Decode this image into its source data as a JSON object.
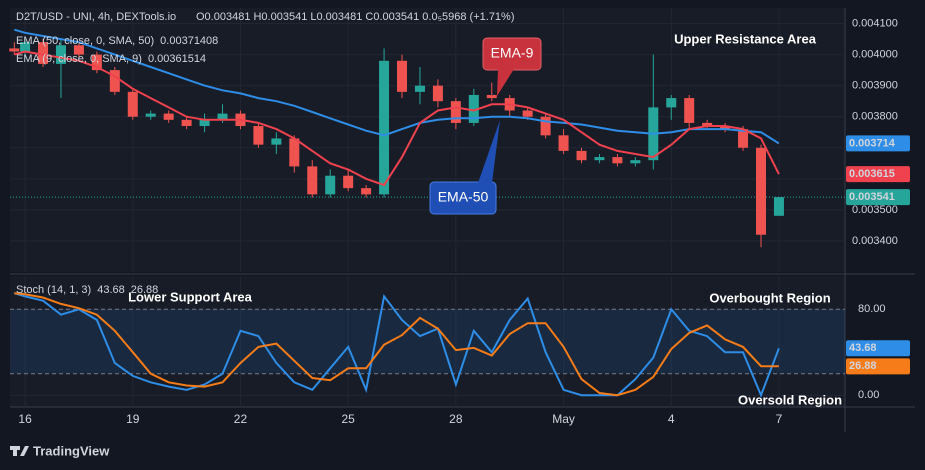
{
  "chart_data": [
    {
      "type": "candlestick",
      "title": "D2T/USD - UNI, 4h, DEXTools.io",
      "ohlc_text": "O0.003481  H0.003541  L0.003481  C0.003541  0.0₅5968 (+1.71%)",
      "up_color": "#26a69a",
      "down_color": "#ef5350",
      "x": [
        -0.3,
        0,
        0.5,
        1,
        1.5,
        2,
        2.5,
        3,
        3.5,
        4,
        4.5,
        5,
        5.5,
        6,
        6.5,
        7,
        7.5,
        8,
        8.5,
        9,
        9.5,
        10,
        10.5,
        11,
        11.5,
        12,
        12.5,
        13,
        13.5,
        14,
        14.5,
        15,
        15.5,
        16,
        16.5,
        17,
        17.5,
        18,
        18.5,
        19,
        19.5,
        20,
        20.5,
        21
      ],
      "open": [
        0.00402,
        0.00401,
        0.00404,
        0.00397,
        0.00403,
        0.004,
        0.00395,
        0.00388,
        0.0038,
        0.00381,
        0.00379,
        0.00377,
        0.00379,
        0.00381,
        0.00377,
        0.00371,
        0.00373,
        0.00364,
        0.00355,
        0.00361,
        0.00357,
        0.00355,
        0.00398,
        0.00388,
        0.0039,
        0.00385,
        0.00378,
        0.00387,
        0.00386,
        0.00382,
        0.0038,
        0.00374,
        0.00369,
        0.00366,
        0.00367,
        0.00365,
        0.00366,
        0.00383,
        0.00386,
        0.00378,
        0.00377,
        0.00376,
        0.0037,
        0.003481
      ],
      "high": [
        0.00404,
        0.00405,
        0.00405,
        0.00405,
        0.00404,
        0.00401,
        0.00396,
        0.00389,
        0.00382,
        0.00382,
        0.0038,
        0.00381,
        0.00384,
        0.00382,
        0.00378,
        0.00375,
        0.00374,
        0.00366,
        0.00363,
        0.00363,
        0.00358,
        0.00402,
        0.004,
        0.00396,
        0.00392,
        0.00386,
        0.00389,
        0.00391,
        0.00387,
        0.00383,
        0.00381,
        0.00376,
        0.0037,
        0.00368,
        0.00368,
        0.00367,
        0.004,
        0.00387,
        0.00387,
        0.00379,
        0.00378,
        0.00377,
        0.00371,
        0.003541
      ],
      "low": [
        0.004,
        0.00399,
        0.00396,
        0.00386,
        0.00399,
        0.00394,
        0.00387,
        0.00379,
        0.00379,
        0.00378,
        0.00376,
        0.00375,
        0.00378,
        0.00376,
        0.0037,
        0.00368,
        0.00362,
        0.00354,
        0.00354,
        0.00356,
        0.00354,
        0.00354,
        0.00386,
        0.00384,
        0.00383,
        0.00376,
        0.00377,
        0.00385,
        0.0038,
        0.00379,
        0.00373,
        0.00368,
        0.00365,
        0.00365,
        0.00364,
        0.00364,
        0.00363,
        0.00379,
        0.00376,
        0.00376,
        0.00375,
        0.00369,
        0.00338,
        0.003481
      ],
      "close": [
        0.00401,
        0.00404,
        0.00397,
        0.00403,
        0.004,
        0.00395,
        0.00388,
        0.0038,
        0.00381,
        0.00379,
        0.00377,
        0.00379,
        0.00381,
        0.00377,
        0.00371,
        0.00373,
        0.00364,
        0.00355,
        0.00361,
        0.00357,
        0.00355,
        0.00398,
        0.00388,
        0.0039,
        0.00385,
        0.00378,
        0.00387,
        0.00386,
        0.00382,
        0.0038,
        0.00374,
        0.00369,
        0.00366,
        0.00367,
        0.00365,
        0.00366,
        0.00383,
        0.00386,
        0.00378,
        0.00377,
        0.00376,
        0.0037,
        0.00342,
        0.003541
      ],
      "series": [
        {
          "name": "EMA (50, close, 0, SMA, 50)",
          "color": "#2e8de6",
          "current_label": "0.003714",
          "values": [
            0.00408,
            0.00407,
            0.00406,
            0.00405,
            0.00404,
            0.00402,
            0.004,
            0.00398,
            0.00396,
            0.00394,
            0.00392,
            0.0039,
            0.003885,
            0.003875,
            0.00386,
            0.00385,
            0.003835,
            0.003815,
            0.003795,
            0.003775,
            0.003755,
            0.00374,
            0.00376,
            0.00378,
            0.00379,
            0.003795,
            0.003795,
            0.0038,
            0.0038,
            0.003795,
            0.003785,
            0.00378,
            0.003775,
            0.003765,
            0.003755,
            0.00375,
            0.003745,
            0.00375,
            0.00376,
            0.00376,
            0.00376,
            0.003755,
            0.00375,
            0.00371408
          ]
        },
        {
          "name": "EMA (9, close, 0, SMA, 9)",
          "color": "#f0424e",
          "current_label": "0.003615",
          "values": [
            0.004,
            0.00401,
            0.004,
            0.00399,
            0.00398,
            0.00396,
            0.00393,
            0.00389,
            0.00386,
            0.00383,
            0.0038,
            0.00379,
            0.00379,
            0.00379,
            0.00378,
            0.00376,
            0.00373,
            0.00369,
            0.00365,
            0.00363,
            0.0036,
            0.00358,
            0.00367,
            0.00378,
            0.00382,
            0.00383,
            0.00382,
            0.00384,
            0.00384,
            0.00383,
            0.00381,
            0.00379,
            0.00375,
            0.00371,
            0.00369,
            0.00368,
            0.00367,
            0.00371,
            0.00376,
            0.00377,
            0.00377,
            0.00376,
            0.00373,
            0.00361514
          ]
        }
      ],
      "annotations": [
        "Upper Resistance Area",
        "EMA-9",
        "EMA-50"
      ],
      "xlim": [
        -0.42,
        22.84
      ],
      "ylim": [
        0.0033,
        0.00415
      ],
      "yticks": [
        {
          "value": 0.0041,
          "label": "0.004100"
        },
        {
          "value": 0.004,
          "label": "0.004000"
        },
        {
          "value": 0.0039,
          "label": "0.003900"
        },
        {
          "value": 0.0038,
          "label": "0.003800"
        },
        {
          "value": 0.0037,
          "label": "0.003700"
        },
        {
          "value": 0.0036,
          "label": "0.003600"
        },
        {
          "value": 0.0035,
          "label": "0.003500"
        },
        {
          "value": 0.0034,
          "label": "0.003400"
        }
      ],
      "grid": true
    },
    {
      "type": "line",
      "title": "Stoch (14, 1, 3)",
      "x": [
        -0.3,
        0,
        0.5,
        1,
        1.5,
        2,
        2.5,
        3,
        3.5,
        4,
        4.5,
        5,
        5.5,
        6,
        6.5,
        7,
        7.5,
        8,
        8.5,
        9,
        9.5,
        10,
        10.5,
        11,
        11.5,
        12,
        12.5,
        13,
        13.5,
        14,
        14.5,
        15,
        15.5,
        16,
        16.5,
        17,
        17.5,
        18,
        18.5,
        19,
        19.5,
        20,
        20.5,
        21
      ],
      "series": [
        {
          "color": "#2e8de6",
          "values": [
            95,
            92,
            88,
            75,
            80,
            70,
            30,
            18,
            12,
            8,
            5,
            10,
            20,
            60,
            55,
            30,
            12,
            5,
            25,
            45,
            5,
            92,
            70,
            55,
            62,
            10,
            60,
            40,
            70,
            90,
            40,
            5,
            0,
            0,
            0,
            15,
            35,
            80,
            60,
            55,
            40,
            40,
            0,
            43.68
          ]
        },
        {
          "color": "#f57c18",
          "values": [
            95,
            94,
            91,
            85,
            81,
            75,
            60,
            40,
            20,
            12,
            9,
            8,
            12,
            30,
            45,
            48,
            32,
            16,
            14,
            25,
            25,
            47,
            56,
            72,
            62,
            42,
            44,
            37,
            57,
            67,
            67,
            45,
            15,
            2,
            0,
            5,
            17,
            43,
            58,
            65,
            52,
            45,
            27,
            26.88
          ]
        }
      ],
      "levels": [
        20,
        80
      ],
      "annotations": [
        "Lower Support Area",
        "Overbought Region",
        "Oversold Region"
      ],
      "xlim": [
        -0.42,
        22.84
      ],
      "ylim": [
        -11,
        111
      ],
      "yticks": [
        {
          "value": 80,
          "label": "80.00"
        },
        {
          "value": 0,
          "label": "0.00"
        }
      ],
      "xticks": [
        {
          "value": 0,
          "label": "16"
        },
        {
          "value": 3,
          "label": "19"
        },
        {
          "value": 6,
          "label": "22"
        },
        {
          "value": 9,
          "label": "25"
        },
        {
          "value": 12,
          "label": "28"
        },
        {
          "value": 15,
          "label": "May"
        },
        {
          "value": 18,
          "label": "4"
        },
        {
          "value": 21,
          "label": "7"
        }
      ],
      "grid": true
    }
  ],
  "footer": {
    "brand": "TradingView"
  }
}
